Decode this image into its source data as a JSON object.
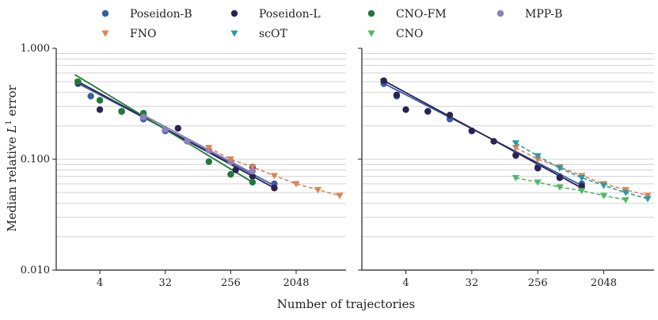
{
  "chart_data": {
    "type": "scatter",
    "xscale": "log2",
    "yscale": "log10",
    "xlabel": "Number of trajectories",
    "ylabel_main": "Median relative ",
    "ylabel_sym": "L",
    "ylabel_sup": "1",
    "ylabel_end": " error",
    "xlim": [
      1,
      10000
    ],
    "ylim": [
      0.01,
      1.0
    ],
    "xticks": [
      4,
      32,
      256,
      2048
    ],
    "xtick_labels": [
      "4",
      "32",
      "256",
      "2048"
    ],
    "yticks": [
      1.0,
      0.1,
      0.01
    ],
    "ytick_labels": [
      "1.000",
      "0.100",
      "0.010"
    ],
    "legend": {
      "placement": "top",
      "items": [
        {
          "label": "Poseidon-B",
          "color": "#3b5ba5",
          "marker": "circle"
        },
        {
          "label": "Poseidon-L",
          "color": "#2b2350",
          "marker": "circle"
        },
        {
          "label": "CNO-FM",
          "color": "#1f7a3a",
          "marker": "circle"
        },
        {
          "label": "MPP-B",
          "color": "#8c7fbf",
          "marker": "circle"
        },
        {
          "label": "FNO",
          "color": "#dd8452",
          "marker": "triangle"
        },
        {
          "label": "scOT",
          "color": "#2a9ba8",
          "marker": "triangle"
        },
        {
          "label": "CNO",
          "color": "#52b864",
          "marker": "triangle"
        }
      ]
    },
    "panels": [
      {
        "name": "left",
        "series": [
          {
            "name": "Poseidon-B",
            "color": "#3b5ba5",
            "marker": "circle",
            "dashed": false,
            "x": [
              2,
              3,
              8,
              16,
              32,
              512,
              1024
            ],
            "y": [
              0.48,
              0.37,
              0.27,
              0.23,
              0.18,
              0.085,
              0.06
            ],
            "fit": [
              [
                1.8,
                0.5
              ],
              [
                1024,
                0.058
              ]
            ]
          },
          {
            "name": "Poseidon-L",
            "color": "#2b2350",
            "marker": "circle",
            "dashed": false,
            "x": [
              2,
              4,
              8,
              16,
              48,
              300,
              512,
              1024
            ],
            "y": [
              0.49,
              0.28,
              0.27,
              0.25,
              0.19,
              0.08,
              0.07,
              0.055
            ],
            "fit": [
              [
                1.8,
                0.52
              ],
              [
                1024,
                0.055
              ]
            ]
          },
          {
            "name": "CNO-FM",
            "color": "#1f7a3a",
            "marker": "circle",
            "dashed": false,
            "x": [
              2,
              4,
              8,
              16,
              16,
              128,
              256,
              512
            ],
            "y": [
              0.5,
              0.34,
              0.27,
              0.26,
              0.25,
              0.095,
              0.073,
              0.062
            ],
            "fit": [
              [
                1.8,
                0.58
              ],
              [
                512,
                0.062
              ]
            ]
          },
          {
            "name": "MPP-B",
            "color": "#8c7fbf",
            "marker": "circle",
            "dashed": false,
            "x": [
              16,
              32,
              64,
              128,
              256,
              512
            ],
            "y": [
              0.24,
              0.185,
              0.145,
              0.12,
              0.095,
              0.078
            ],
            "fit": [
              [
                16,
                0.25
              ],
              [
                512,
                0.075
              ]
            ]
          },
          {
            "name": "FNO",
            "color": "#dd8452",
            "marker": "triangle",
            "dashed": true,
            "x": [
              128,
              256,
              512,
              1024,
              2048,
              4096,
              8192
            ],
            "y": [
              0.127,
              0.1,
              0.085,
              0.071,
              0.06,
              0.053,
              0.047
            ],
            "fit": null
          }
        ]
      },
      {
        "name": "right",
        "series": [
          {
            "name": "Poseidon-B",
            "color": "#3b5ba5",
            "marker": "circle",
            "dashed": false,
            "x": [
              2,
              3,
              8,
              16,
              32,
              128,
              256,
              512,
              1024
            ],
            "y": [
              0.48,
              0.37,
              0.27,
              0.23,
              0.18,
              0.11,
              0.085,
              0.07,
              0.06
            ],
            "fit": [
              [
                1.8,
                0.5
              ],
              [
                1024,
                0.058
              ]
            ]
          },
          {
            "name": "Poseidon-L",
            "color": "#2b2350",
            "marker": "circle",
            "dashed": false,
            "x": [
              2,
              3,
              4,
              8,
              16,
              32,
              64,
              128,
              256,
              512,
              1024
            ],
            "y": [
              0.51,
              0.38,
              0.28,
              0.27,
              0.25,
              0.18,
              0.145,
              0.108,
              0.083,
              0.068,
              0.057
            ],
            "fit": [
              [
                1.8,
                0.53
              ],
              [
                1024,
                0.055
              ]
            ]
          },
          {
            "name": "FNO",
            "color": "#dd8452",
            "marker": "triangle",
            "dashed": true,
            "x": [
              128,
              256,
              512,
              1024,
              2048,
              4096,
              8192
            ],
            "y": [
              0.127,
              0.1,
              0.085,
              0.071,
              0.06,
              0.053,
              0.047
            ],
            "fit": null
          },
          {
            "name": "scOT",
            "color": "#2a9ba8",
            "marker": "triangle",
            "dashed": true,
            "x": [
              128,
              256,
              512,
              1024,
              2048,
              4096,
              8192
            ],
            "y": [
              0.14,
              0.107,
              0.083,
              0.068,
              0.058,
              0.05,
              0.044
            ],
            "fit": null
          },
          {
            "name": "CNO",
            "color": "#52b864",
            "marker": "triangle",
            "dashed": true,
            "x": [
              128,
              256,
              512,
              1024,
              2048,
              4096
            ],
            "y": [
              0.068,
              0.062,
              0.056,
              0.052,
              0.047,
              0.043
            ],
            "fit": null
          }
        ]
      }
    ]
  }
}
